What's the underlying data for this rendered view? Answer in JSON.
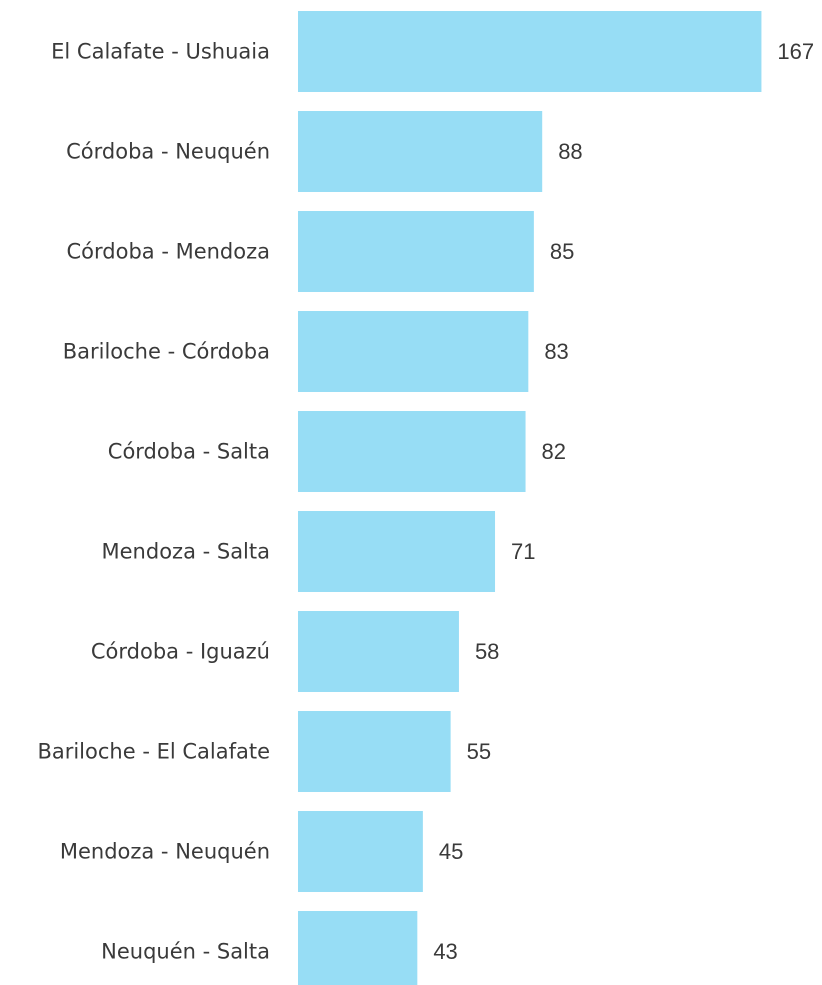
{
  "chart_data": {
    "type": "bar",
    "orientation": "horizontal",
    "categories": [
      "El Calafate - Ushuaia",
      "Córdoba - Neuquén",
      "Córdoba - Mendoza",
      "Bariloche - Córdoba",
      "Córdoba - Salta",
      "Mendoza - Salta",
      "Córdoba - Iguazú",
      "Bariloche - El Calafate",
      "Mendoza - Neuquén",
      "Neuquén - Salta"
    ],
    "values": [
      167,
      88,
      85,
      83,
      82,
      71,
      58,
      55,
      45,
      43
    ],
    "data_labels": [
      "167",
      "88",
      "85",
      "83",
      "82",
      "71",
      "58",
      "55",
      "45",
      "43"
    ],
    "bar_color": "#97DDF5",
    "text_color": "#3a3a3a",
    "grid": false,
    "legend": "none"
  }
}
